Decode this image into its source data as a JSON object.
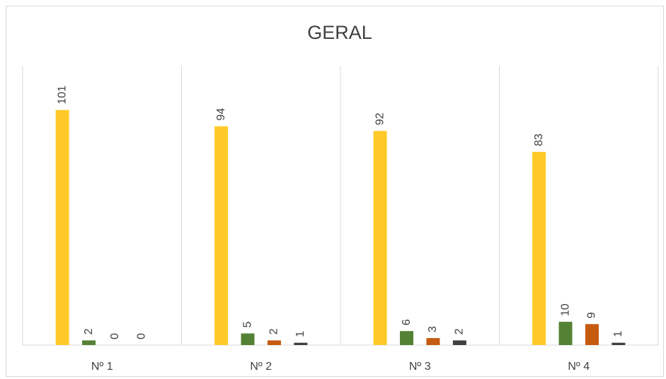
{
  "chart_data": {
    "type": "bar",
    "title": "GERAL",
    "categories": [
      "Nº 1",
      "Nº 2",
      "Nº 3",
      "Nº 4"
    ],
    "series": [
      {
        "color": "#FFCA28",
        "values": [
          101,
          94,
          92,
          83
        ]
      },
      {
        "color": "#548235",
        "values": [
          2,
          5,
          6,
          10
        ]
      },
      {
        "color": "#C55A11",
        "values": [
          0,
          2,
          3,
          9
        ]
      },
      {
        "color": "#404040",
        "values": [
          0,
          1,
          2,
          1
        ]
      }
    ],
    "ylim": [
      0,
      120
    ]
  }
}
